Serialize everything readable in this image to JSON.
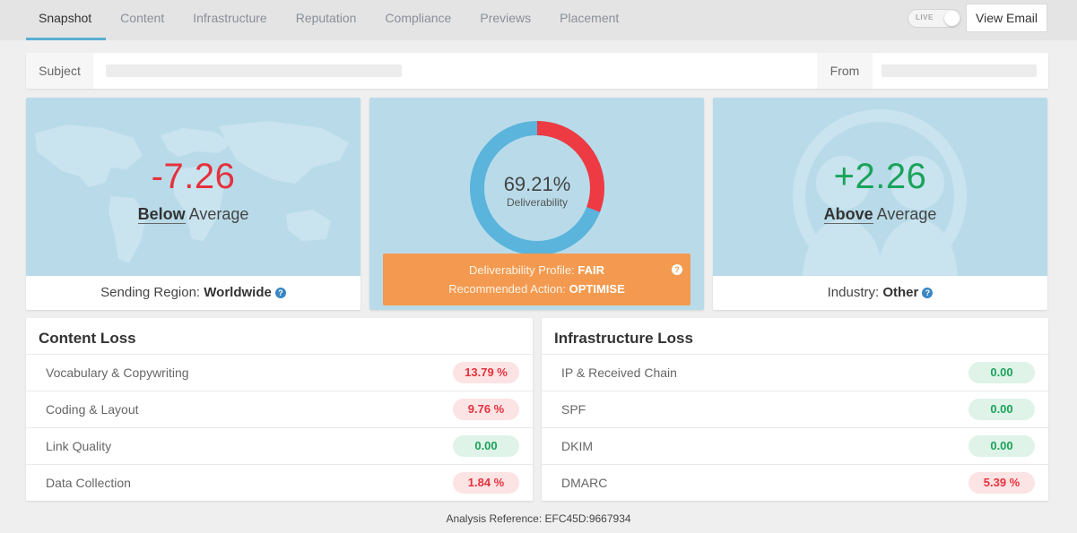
{
  "tabs": [
    {
      "label": "Snapshot",
      "active": true
    },
    {
      "label": "Content"
    },
    {
      "label": "Infrastructure"
    },
    {
      "label": "Reputation"
    },
    {
      "label": "Compliance"
    },
    {
      "label": "Previews"
    },
    {
      "label": "Placement"
    }
  ],
  "live_toggle_label": "LIVE",
  "view_email_label": "View Email",
  "subject_label": "Subject",
  "from_label": "From",
  "region_card": {
    "score": "-7.26",
    "comparison": "Below",
    "average_word": "Average",
    "footer_label": "Sending Region:",
    "footer_value": "Worldwide"
  },
  "deliverability_card": {
    "percent_text": "69.21%",
    "percent_value": 69.21,
    "sub_label": "Deliverability",
    "profile_label": "Deliverability Profile:",
    "profile_value": "FAIR",
    "action_label": "Recommended Action:",
    "action_value": "OPTIMISE"
  },
  "industry_card": {
    "score": "+2.26",
    "comparison": "Above",
    "average_word": "Average",
    "footer_label": "Industry:",
    "footer_value": "Other"
  },
  "content_loss": {
    "title": "Content Loss",
    "rows": [
      {
        "name": "Vocabulary & Copywriting",
        "value": "13.79 %",
        "status": "bad"
      },
      {
        "name": "Coding & Layout",
        "value": "9.76 %",
        "status": "bad"
      },
      {
        "name": "Link Quality",
        "value": "0.00",
        "status": "good"
      },
      {
        "name": "Data Collection",
        "value": "1.84 %",
        "status": "bad"
      }
    ]
  },
  "infrastructure_loss": {
    "title": "Infrastructure Loss",
    "rows": [
      {
        "name": "IP & Received Chain",
        "value": "0.00",
        "status": "good"
      },
      {
        "name": "SPF",
        "value": "0.00",
        "status": "good"
      },
      {
        "name": "DKIM",
        "value": "0.00",
        "status": "good"
      },
      {
        "name": "DMARC",
        "value": "5.39 %",
        "status": "bad"
      }
    ]
  },
  "analysis_reference": "Analysis Reference: EFC45D:9667934",
  "colors": {
    "card_bg": "#b9dbe9",
    "donut_good": "#5ab4dc",
    "donut_bad": "#ee3b43",
    "negative": "#e5323c",
    "positive": "#1aa35a",
    "profile_bg": "#f39a50",
    "tab_accent": "#5aaed3"
  },
  "icons": [
    "help-icon",
    "world-map-icon",
    "industry-people-icon"
  ]
}
